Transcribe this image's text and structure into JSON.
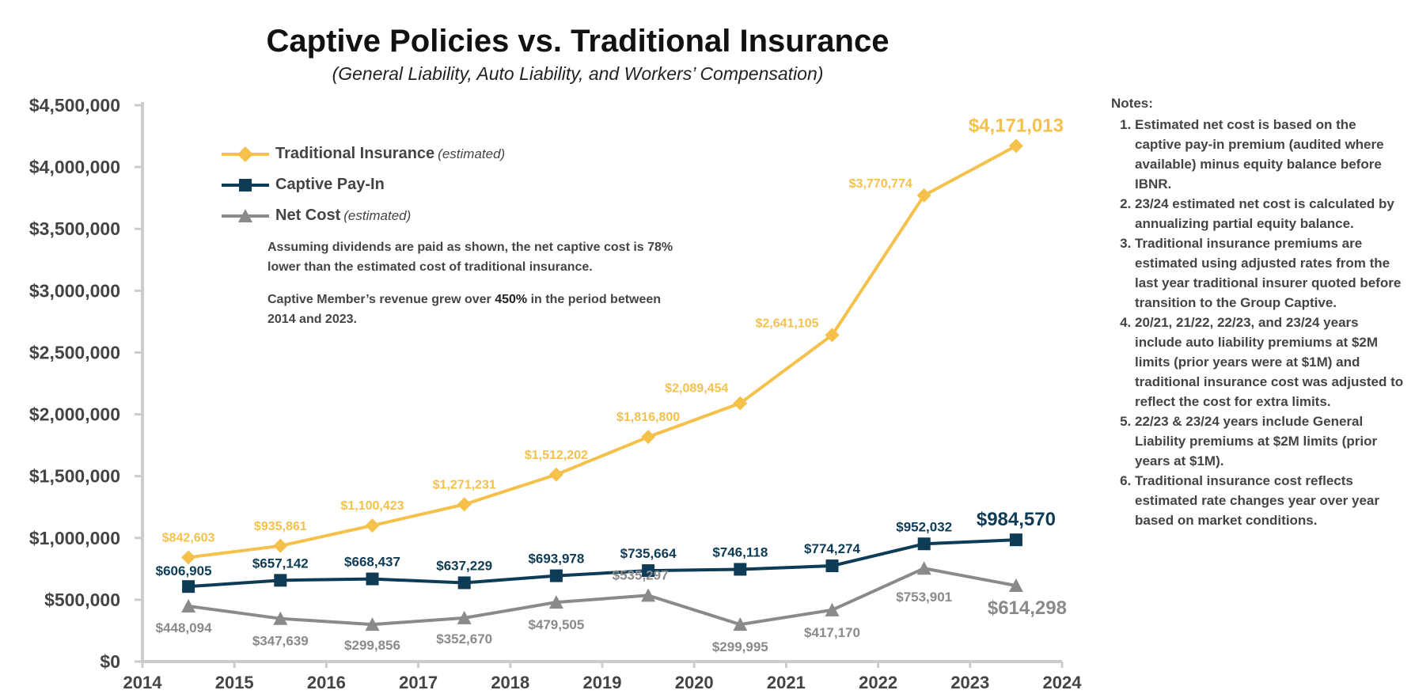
{
  "colors": {
    "traditional": "#F5C14B",
    "captive": "#0E3B55",
    "net": "#8A8A8A",
    "axis": "#cccccc",
    "text": "#444444"
  },
  "legend": [
    {
      "key": "traditional",
      "label": "Traditional Insurance",
      "note": "(estimated)",
      "marker": "diamond"
    },
    {
      "key": "captive",
      "label": "Captive Pay-In",
      "note": "",
      "marker": "square"
    },
    {
      "key": "net",
      "label": "Net Cost",
      "note": "(estimated)",
      "marker": "triangle"
    }
  ],
  "callouts": {
    "p1": "Assuming dividends are paid as shown, the net captive cost is 78% lower than the estimated cost of traditional insurance.",
    "p2_prefix": "Captive Member’s revenue grew over ",
    "p2_bold": "450%",
    "p2_suffix": " in the period between 2014 and 2023."
  },
  "notes": {
    "heading": "Notes:",
    "items": [
      "Estimated net cost is based on the captive pay-in premium (audited where available) minus equity balance before IBNR.",
      "23/24 estimated net cost is calculated by annualizing partial equity balance.",
      "Traditional insurance premiums are estimated using adjusted rates from the last year traditional insurer quoted before transition to the Group Captive.",
      "20/21, 21/22, 22/23, and 23/24 years include auto liability premiums at $2M limits (prior years were at $1M) and traditional insurance cost was adjusted to reflect the cost for extra limits.",
      "22/23 & 23/24 years include General Liability premiums at $2M limits (prior years at $1M).",
      "Traditional insurance cost reflects estimated rate changes year over year based on market conditions."
    ]
  },
  "chart_data": {
    "type": "line",
    "title": "Captive Policies vs. Traditional Insurance",
    "subtitle": "(General Liability, Auto Liability, and Workers’ Compensation)",
    "xlabel": "",
    "ylabel": "",
    "x": [
      2014.5,
      2015.5,
      2016.5,
      2017.5,
      2018.5,
      2019.5,
      2020.5,
      2021.5,
      2022.5,
      2023.5
    ],
    "xlim": [
      2014,
      2024
    ],
    "ylim": [
      0,
      4500000
    ],
    "x_ticks": [
      "2014",
      "2015",
      "2016",
      "2017",
      "2018",
      "2019",
      "2020",
      "2021",
      "2022",
      "2023",
      "2024"
    ],
    "y_ticks": [
      "$0",
      "$500,000",
      "$1,000,000",
      "$1,500,000",
      "$2,000,000",
      "$2,500,000",
      "$3,000,000",
      "$3,500,000",
      "$4,000,000",
      "$4,500,000"
    ],
    "grid": false,
    "legend_position": "top-left",
    "series": [
      {
        "name": "Traditional Insurance (estimated)",
        "key": "traditional",
        "values": [
          842603,
          935861,
          1100423,
          1271231,
          1512202,
          1816800,
          2089454,
          2641105,
          3770774,
          4171013
        ],
        "labels": [
          "$842,603",
          "$935,861",
          "$1,100,423",
          "$1,271,231",
          "$1,512,202",
          "$1,816,800",
          "$2,089,454",
          "$2,641,105",
          "$3,770,774",
          "$4,171,013"
        ]
      },
      {
        "name": "Captive Pay-In",
        "key": "captive",
        "values": [
          606905,
          657142,
          668437,
          637229,
          693978,
          735664,
          746118,
          774274,
          952032,
          984570
        ],
        "labels": [
          "$606,905",
          "$657,142",
          "$668,437",
          "$637,229",
          "$693,978",
          "$735,664",
          "$746,118",
          "$774,274",
          "$952,032",
          "$984,570"
        ]
      },
      {
        "name": "Net Cost (estimated)",
        "key": "net",
        "values": [
          448094,
          347639,
          299856,
          352670,
          479505,
          535297,
          299995,
          417170,
          753901,
          614298
        ],
        "labels": [
          "$448,094",
          "$347,639",
          "$299,856",
          "$352,670",
          "$479,505",
          "$535,297",
          "$299,995",
          "$417,170",
          "$753,901",
          "$614,298"
        ]
      }
    ]
  }
}
